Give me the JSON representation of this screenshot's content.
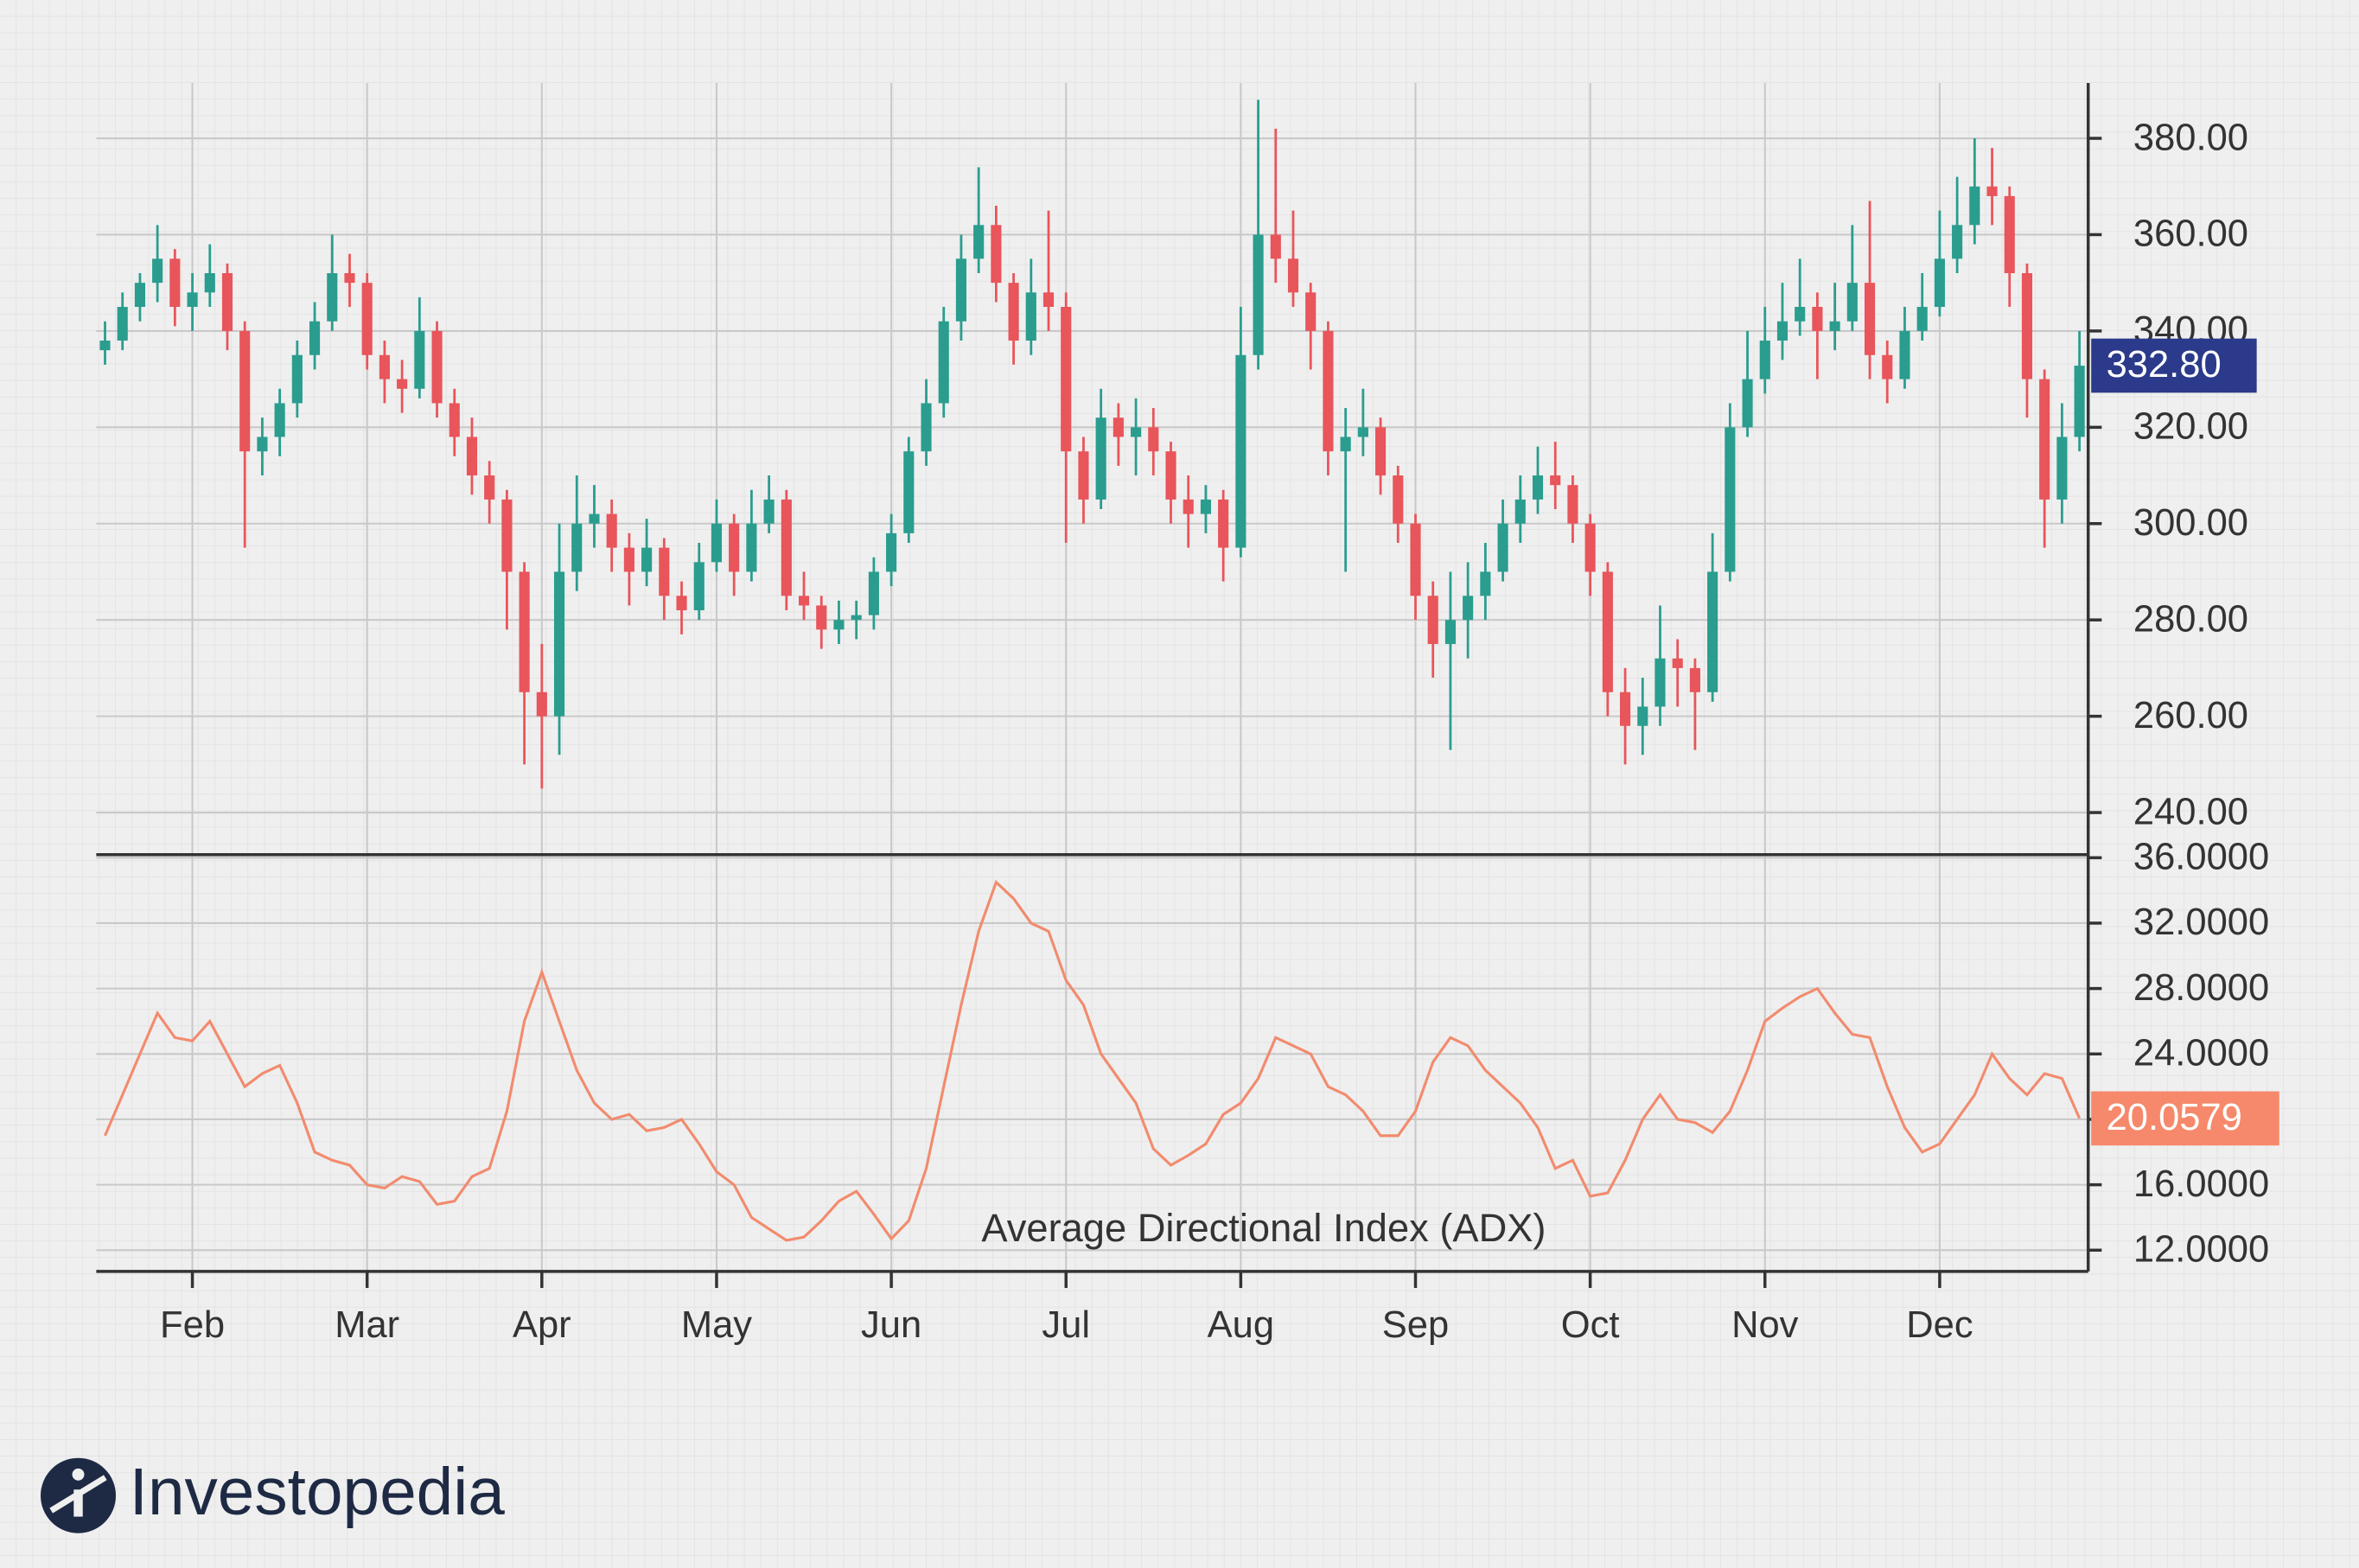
{
  "chart_data": [
    {
      "type": "candlestick",
      "up_color": "#2a9d8f",
      "down_color": "#e8555a",
      "ylim": [
        231.25,
        391.5
      ],
      "yticks": [
        {
          "value": 240,
          "label": "240.00"
        },
        {
          "value": 260,
          "label": "260.00"
        },
        {
          "value": 280,
          "label": "280.00"
        },
        {
          "value": 300,
          "label": "300.00"
        },
        {
          "value": 320,
          "label": "320.00"
        },
        {
          "value": 340,
          "label": "340.00"
        },
        {
          "value": 360,
          "label": "360.00"
        },
        {
          "value": 380,
          "label": "380.00"
        }
      ],
      "grid": true,
      "last_label": "332.80",
      "last_color": "#2b3a8a",
      "ohlc": [
        [
          336,
          342,
          333,
          338
        ],
        [
          338,
          348,
          336,
          345
        ],
        [
          345,
          352,
          342,
          350
        ],
        [
          350,
          362,
          346,
          355
        ],
        [
          355,
          357,
          341,
          345
        ],
        [
          345,
          352,
          340,
          348
        ],
        [
          348,
          358,
          345,
          352
        ],
        [
          352,
          354,
          336,
          340
        ],
        [
          340,
          342,
          295,
          315
        ],
        [
          315,
          322,
          310,
          318
        ],
        [
          318,
          328,
          314,
          325
        ],
        [
          325,
          338,
          322,
          335
        ],
        [
          335,
          346,
          332,
          342
        ],
        [
          342,
          360,
          340,
          352
        ],
        [
          352,
          356,
          345,
          350
        ],
        [
          350,
          352,
          332,
          335
        ],
        [
          335,
          338,
          325,
          330
        ],
        [
          330,
          334,
          323,
          328
        ],
        [
          328,
          347,
          326,
          340
        ],
        [
          340,
          342,
          322,
          325
        ],
        [
          325,
          328,
          314,
          318
        ],
        [
          318,
          322,
          306,
          310
        ],
        [
          310,
          313,
          300,
          305
        ],
        [
          305,
          307,
          278,
          290
        ],
        [
          290,
          292,
          250,
          265
        ],
        [
          265,
          275,
          245,
          260
        ],
        [
          260,
          300,
          252,
          290
        ],
        [
          290,
          310,
          286,
          300
        ],
        [
          300,
          308,
          295,
          302
        ],
        [
          302,
          305,
          290,
          295
        ],
        [
          295,
          298,
          283,
          290
        ],
        [
          290,
          301,
          287,
          295
        ],
        [
          295,
          297,
          280,
          285
        ],
        [
          285,
          288,
          277,
          282
        ],
        [
          282,
          296,
          280,
          292
        ],
        [
          292,
          305,
          290,
          300
        ],
        [
          300,
          302,
          285,
          290
        ],
        [
          290,
          307,
          288,
          300
        ],
        [
          300,
          310,
          298,
          305
        ],
        [
          305,
          307,
          282,
          285
        ],
        [
          285,
          290,
          280,
          283
        ],
        [
          283,
          285,
          274,
          278
        ],
        [
          278,
          284,
          275,
          280
        ],
        [
          280,
          284,
          276,
          281
        ],
        [
          281,
          293,
          278,
          290
        ],
        [
          290,
          302,
          287,
          298
        ],
        [
          298,
          318,
          296,
          315
        ],
        [
          315,
          330,
          312,
          325
        ],
        [
          325,
          345,
          322,
          342
        ],
        [
          342,
          360,
          338,
          355
        ],
        [
          355,
          374,
          352,
          362
        ],
        [
          362,
          366,
          346,
          350
        ],
        [
          350,
          352,
          333,
          338
        ],
        [
          338,
          355,
          335,
          348
        ],
        [
          348,
          365,
          340,
          345
        ],
        [
          345,
          348,
          296,
          315
        ],
        [
          315,
          318,
          300,
          305
        ],
        [
          305,
          328,
          303,
          322
        ],
        [
          322,
          325,
          312,
          318
        ],
        [
          318,
          326,
          310,
          320
        ],
        [
          320,
          324,
          310,
          315
        ],
        [
          315,
          317,
          300,
          305
        ],
        [
          305,
          310,
          295,
          302
        ],
        [
          302,
          308,
          298,
          305
        ],
        [
          305,
          307,
          288,
          295
        ],
        [
          295,
          345,
          293,
          335
        ],
        [
          335,
          388,
          332,
          360
        ],
        [
          360,
          382,
          350,
          355
        ],
        [
          355,
          365,
          345,
          348
        ],
        [
          348,
          350,
          332,
          340
        ],
        [
          340,
          342,
          310,
          315
        ],
        [
          315,
          324,
          290,
          318
        ],
        [
          318,
          328,
          314,
          320
        ],
        [
          320,
          322,
          306,
          310
        ],
        [
          310,
          312,
          296,
          300
        ],
        [
          300,
          302,
          280,
          285
        ],
        [
          285,
          288,
          268,
          275
        ],
        [
          275,
          290,
          253,
          280
        ],
        [
          280,
          292,
          272,
          285
        ],
        [
          285,
          296,
          280,
          290
        ],
        [
          290,
          305,
          288,
          300
        ],
        [
          300,
          310,
          296,
          305
        ],
        [
          305,
          316,
          302,
          310
        ],
        [
          310,
          317,
          303,
          308
        ],
        [
          308,
          310,
          296,
          300
        ],
        [
          300,
          302,
          285,
          290
        ],
        [
          290,
          292,
          260,
          265
        ],
        [
          265,
          270,
          250,
          258
        ],
        [
          258,
          268,
          252,
          262
        ],
        [
          262,
          283,
          258,
          272
        ],
        [
          272,
          276,
          262,
          270
        ],
        [
          270,
          272,
          253,
          265
        ],
        [
          265,
          298,
          263,
          290
        ],
        [
          290,
          325,
          288,
          320
        ],
        [
          320,
          340,
          318,
          330
        ],
        [
          330,
          345,
          327,
          338
        ],
        [
          338,
          350,
          334,
          342
        ],
        [
          342,
          355,
          339,
          345
        ],
        [
          345,
          348,
          330,
          340
        ],
        [
          340,
          350,
          336,
          342
        ],
        [
          342,
          362,
          340,
          350
        ],
        [
          350,
          367,
          330,
          335
        ],
        [
          335,
          338,
          325,
          330
        ],
        [
          330,
          345,
          328,
          340
        ],
        [
          340,
          352,
          338,
          345
        ],
        [
          345,
          365,
          343,
          355
        ],
        [
          355,
          372,
          352,
          362
        ],
        [
          362,
          380,
          358,
          370
        ],
        [
          370,
          378,
          362,
          368
        ],
        [
          368,
          370,
          345,
          352
        ],
        [
          352,
          354,
          322,
          330
        ],
        [
          330,
          332,
          295,
          305
        ],
        [
          305,
          325,
          300,
          318
        ],
        [
          318,
          340,
          315,
          332.8
        ]
      ]
    },
    {
      "type": "line",
      "title": "Average Directional Index (ADX)",
      "color": "#f28b6e",
      "ylim": [
        10.7,
        36
      ],
      "yticks": [
        {
          "value": 12,
          "label": "12.0000"
        },
        {
          "value": 16,
          "label": "16.0000"
        },
        {
          "value": 20,
          "label": "20.0000"
        },
        {
          "value": 24,
          "label": "24.0000"
        },
        {
          "value": 28,
          "label": "28.0000"
        },
        {
          "value": 32,
          "label": "32.0000"
        },
        {
          "value": 36,
          "label": "36.0000"
        }
      ],
      "grid": true,
      "last_label": "20.0579",
      "last_color": "#f6896b",
      "categories": [
        null,
        null,
        null,
        null,
        null,
        "Feb",
        null,
        null,
        null,
        null,
        null,
        null,
        null,
        null,
        null,
        "Mar",
        null,
        null,
        null,
        null,
        null,
        null,
        null,
        null,
        null,
        "Apr",
        null,
        null,
        null,
        null,
        null,
        null,
        null,
        null,
        null,
        "May",
        null,
        null,
        null,
        null,
        null,
        null,
        null,
        null,
        null,
        "Jun",
        null,
        null,
        null,
        null,
        null,
        null,
        null,
        null,
        null,
        "Jul",
        null,
        null,
        null,
        null,
        null,
        null,
        null,
        null,
        null,
        "Aug",
        null,
        null,
        null,
        null,
        null,
        null,
        null,
        null,
        null,
        "Sep",
        null,
        null,
        null,
        null,
        null,
        null,
        null,
        null,
        null,
        "Oct",
        null,
        null,
        null,
        null,
        null,
        null,
        null,
        null,
        null,
        "Nov",
        null,
        null,
        null,
        null,
        null,
        null,
        null,
        null,
        null,
        "Dec",
        null,
        null,
        null,
        null,
        null,
        null,
        null,
        null
      ],
      "values": [
        19.0,
        21.5,
        24.0,
        26.5,
        25.0,
        24.8,
        26.0,
        24.0,
        22.0,
        22.8,
        23.3,
        21.0,
        18.0,
        17.5,
        17.2,
        16.0,
        15.8,
        16.5,
        16.2,
        14.8,
        15.0,
        16.5,
        17.0,
        20.5,
        26.0,
        29.0,
        26.0,
        23.0,
        21.0,
        20.0,
        20.3,
        19.3,
        19.5,
        20.0,
        18.5,
        16.8,
        16.0,
        14.0,
        13.3,
        12.6,
        12.8,
        13.8,
        15.0,
        15.6,
        14.2,
        12.7,
        13.8,
        17.0,
        22.0,
        27.0,
        31.5,
        34.5,
        33.5,
        32.0,
        31.5,
        28.5,
        27.0,
        24.0,
        22.5,
        21.0,
        18.2,
        17.2,
        17.8,
        18.5,
        20.3,
        21.0,
        22.5,
        25.0,
        24.5,
        24.0,
        22.0,
        21.5,
        20.5,
        19.0,
        19.0,
        20.5,
        23.5,
        25.0,
        24.5,
        23.0,
        22.0,
        21.0,
        19.5,
        17.0,
        17.5,
        15.3,
        15.5,
        17.5,
        20.0,
        21.5,
        20.0,
        19.8,
        19.2,
        20.5,
        23.0,
        26.0,
        26.8,
        27.5,
        28.0,
        26.5,
        25.2,
        25.0,
        22.0,
        19.5,
        18.0,
        18.5,
        20.0,
        21.5,
        24.0,
        22.5,
        21.5,
        22.8,
        22.5,
        20.0579
      ]
    }
  ],
  "logo": "Investopedia"
}
